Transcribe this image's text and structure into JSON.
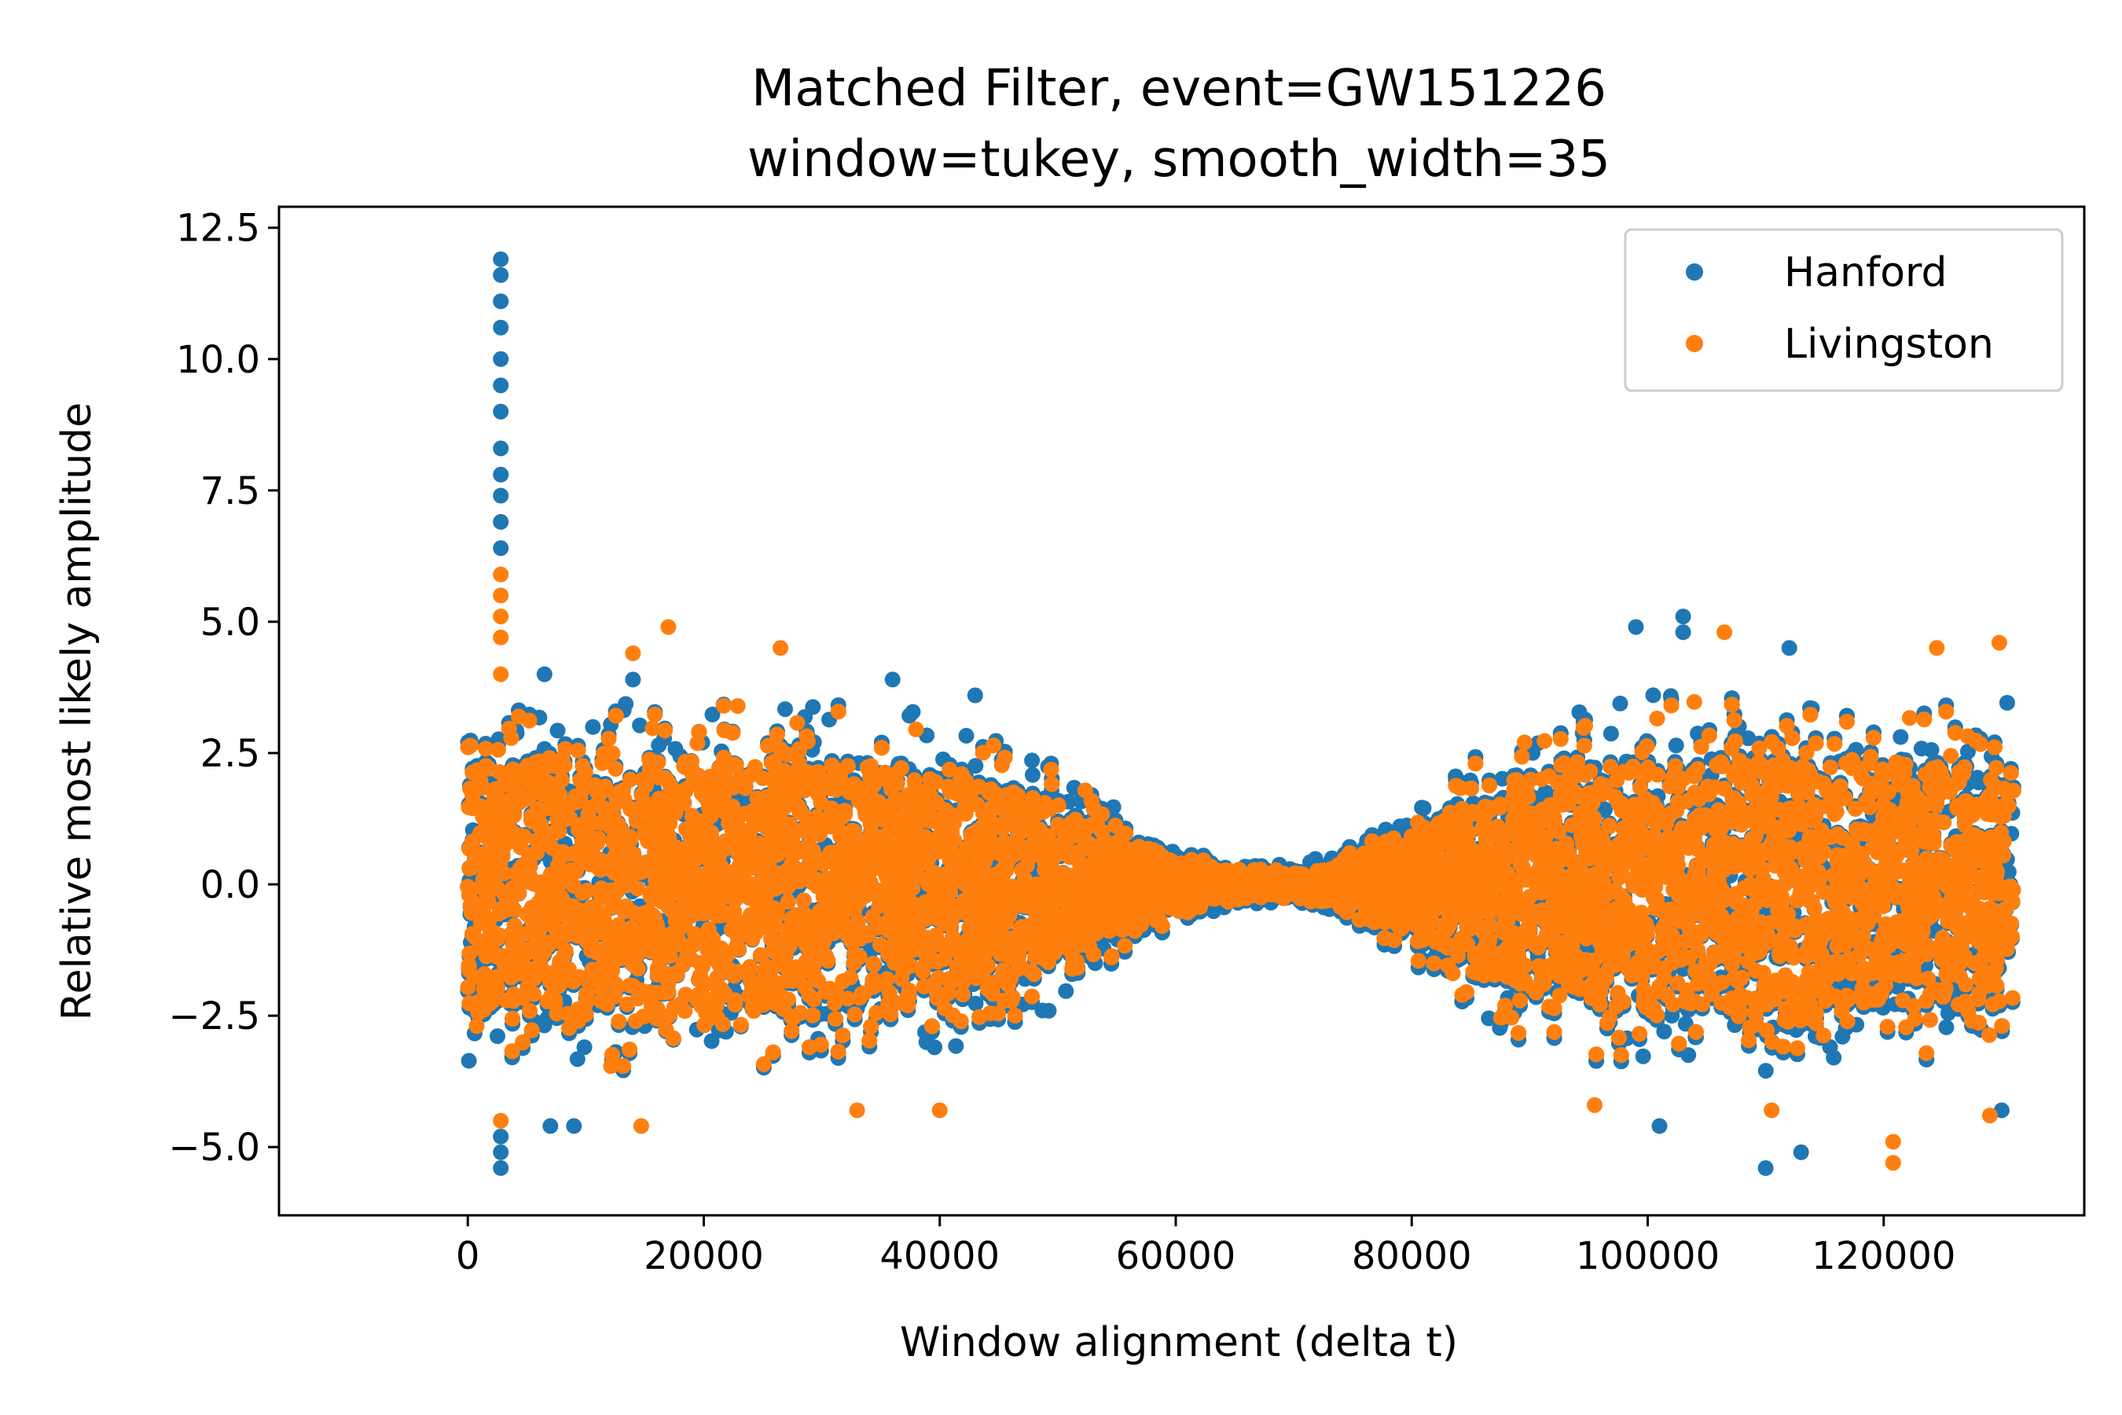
{
  "chart_data": {
    "type": "scatter",
    "title": "Matched Filter, event=GW151226",
    "subtitle": "window=tukey, smooth_width=35",
    "xlabel": "Window alignment (delta t)",
    "ylabel": "Relative most likely amplitude",
    "xlim": [
      -16000,
      137000
    ],
    "ylim": [
      -6.3,
      12.9
    ],
    "xticks": [
      0,
      20000,
      40000,
      60000,
      80000,
      100000,
      120000
    ],
    "xtick_labels": [
      "0",
      "20000",
      "40000",
      "60000",
      "80000",
      "100000",
      "120000"
    ],
    "yticks": [
      -5.0,
      -2.5,
      0.0,
      2.5,
      5.0,
      7.5,
      10.0,
      12.5
    ],
    "ytick_labels": [
      "−5.0",
      "−2.5",
      "0.0",
      "2.5",
      "5.0",
      "7.5",
      "10.0",
      "12.5"
    ],
    "grid": false,
    "legend_position": "top-right",
    "series": [
      {
        "name": "Hanford",
        "color": "#1f77b4",
        "envelope": {
          "x": [
            0,
            10000,
            20000,
            30000,
            40000,
            45000,
            50000,
            55000,
            60000,
            65000,
            70000,
            75000,
            80000,
            85000,
            90000,
            100000,
            110000,
            120000,
            131000
          ],
          "amplitude": [
            2.8,
            2.9,
            2.8,
            2.8,
            2.6,
            2.3,
            1.9,
            1.2,
            0.6,
            0.3,
            0.3,
            0.6,
            1.2,
            1.9,
            2.5,
            2.9,
            2.9,
            2.8,
            2.8
          ]
        },
        "outliers": [
          {
            "x": 2800,
            "y": 11.9
          },
          {
            "x": 2800,
            "y": 11.6
          },
          {
            "x": 2800,
            "y": 11.1
          },
          {
            "x": 2800,
            "y": 10.6
          },
          {
            "x": 2800,
            "y": 10.0
          },
          {
            "x": 2800,
            "y": 9.5
          },
          {
            "x": 2800,
            "y": 9.0
          },
          {
            "x": 2800,
            "y": 8.3
          },
          {
            "x": 2800,
            "y": 7.8
          },
          {
            "x": 2800,
            "y": 7.4
          },
          {
            "x": 2800,
            "y": 6.9
          },
          {
            "x": 2800,
            "y": 6.4
          },
          {
            "x": 2800,
            "y": -5.4
          },
          {
            "x": 2800,
            "y": -5.1
          },
          {
            "x": 2800,
            "y": -4.8
          },
          {
            "x": 6500,
            "y": 4.0
          },
          {
            "x": 14000,
            "y": 3.9
          },
          {
            "x": 36000,
            "y": 3.9
          },
          {
            "x": 43000,
            "y": 3.6
          },
          {
            "x": 103000,
            "y": 5.1
          },
          {
            "x": 103000,
            "y": 4.8
          },
          {
            "x": 99000,
            "y": 4.9
          },
          {
            "x": 112000,
            "y": 4.5
          },
          {
            "x": 110000,
            "y": -5.4
          },
          {
            "x": 113000,
            "y": -5.1
          },
          {
            "x": 101000,
            "y": -4.6
          },
          {
            "x": 7000,
            "y": -4.6
          },
          {
            "x": 9000,
            "y": -4.6
          },
          {
            "x": 130000,
            "y": -4.3
          }
        ]
      },
      {
        "name": "Livingston",
        "color": "#ff7f0e",
        "envelope": {
          "x": [
            0,
            10000,
            20000,
            30000,
            40000,
            45000,
            50000,
            55000,
            60000,
            65000,
            70000,
            75000,
            80000,
            85000,
            90000,
            100000,
            110000,
            120000,
            131000
          ],
          "amplitude": [
            2.7,
            2.8,
            2.8,
            2.7,
            2.5,
            2.2,
            1.8,
            1.1,
            0.5,
            0.25,
            0.25,
            0.5,
            1.1,
            1.8,
            2.4,
            2.8,
            2.8,
            2.7,
            2.7
          ]
        },
        "outliers": [
          {
            "x": 2800,
            "y": 5.9
          },
          {
            "x": 2800,
            "y": 5.5
          },
          {
            "x": 2800,
            "y": 5.1
          },
          {
            "x": 2800,
            "y": 4.7
          },
          {
            "x": 2800,
            "y": 4.0
          },
          {
            "x": 2800,
            "y": -4.5
          },
          {
            "x": 17000,
            "y": 4.9
          },
          {
            "x": 14000,
            "y": 4.4
          },
          {
            "x": 26500,
            "y": 4.5
          },
          {
            "x": 106500,
            "y": 4.8
          },
          {
            "x": 124500,
            "y": 4.5
          },
          {
            "x": 129800,
            "y": 4.6
          },
          {
            "x": 14700,
            "y": -4.6
          },
          {
            "x": 120800,
            "y": -5.3
          },
          {
            "x": 120800,
            "y": -4.9
          },
          {
            "x": 110500,
            "y": -4.3
          },
          {
            "x": 33000,
            "y": -4.3
          },
          {
            "x": 40000,
            "y": -4.3
          },
          {
            "x": 95500,
            "y": -4.2
          },
          {
            "x": 129000,
            "y": -4.4
          }
        ]
      }
    ]
  }
}
